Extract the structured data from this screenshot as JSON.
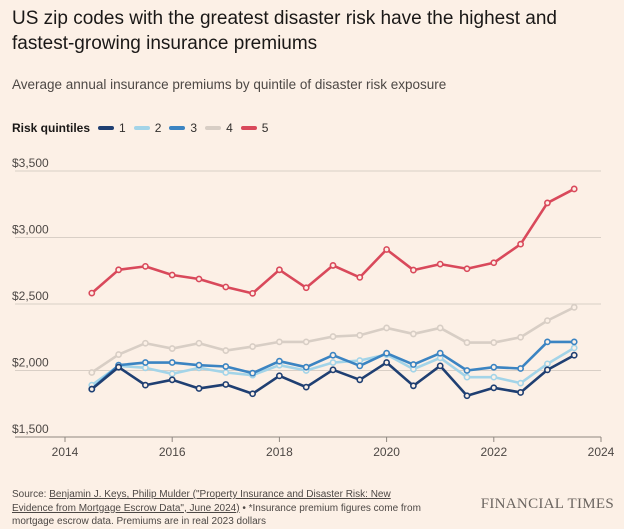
{
  "chart_data": {
    "type": "line",
    "title": "US zip codes with the greatest disaster risk have the highest and fastest-growing insurance premiums",
    "subtitle": "Average annual insurance premiums by quintile of disaster risk exposure",
    "legend_title": "Risk quintiles",
    "legend_placement": "top-left",
    "xlim": [
      2014,
      2024
    ],
    "ylim": [
      1500,
      3500
    ],
    "x_ticks": [
      "2014",
      "2016",
      "2018",
      "2020",
      "2022",
      "2024"
    ],
    "y_ticks": [
      "$1,500",
      "$2,000",
      "$2,500",
      "$3,000",
      "$3,500"
    ],
    "grid": "horizontal",
    "x": [
      2014.5,
      2015,
      2015.5,
      2016,
      2016.5,
      2017,
      2017.5,
      2018,
      2018.5,
      2019,
      2019.5,
      2020,
      2020.5,
      2021,
      2021.5,
      2022,
      2022.5,
      2023,
      2023.5
    ],
    "series": [
      {
        "name": "1",
        "color": "#1f3f72",
        "values": [
          1860,
          2025,
          1890,
          1930,
          1865,
          1895,
          1825,
          1960,
          1875,
          2005,
          1930,
          2060,
          1885,
          2035,
          1810,
          1870,
          1835,
          2005,
          2115
        ]
      },
      {
        "name": "2",
        "color": "#a3d4e8",
        "values": [
          1890,
          2035,
          2020,
          1975,
          2020,
          1985,
          1965,
          2040,
          2000,
          2060,
          2075,
          2120,
          2010,
          2095,
          1950,
          1950,
          1905,
          2050,
          2170
        ]
      },
      {
        "name": "3",
        "color": "#3b84c2",
        "values": [
          1860,
          2040,
          2060,
          2060,
          2040,
          2030,
          1980,
          2070,
          2025,
          2115,
          2035,
          2130,
          2045,
          2130,
          2000,
          2025,
          2015,
          2215,
          2215
        ]
      },
      {
        "name": "4",
        "color": "#d8cec5",
        "values": [
          1985,
          2120,
          2205,
          2165,
          2205,
          2150,
          2180,
          2215,
          2215,
          2255,
          2265,
          2320,
          2275,
          2320,
          2210,
          2210,
          2250,
          2375,
          2475
        ]
      },
      {
        "name": "5",
        "color": "#d9495b",
        "values": [
          2582,
          2757,
          2783,
          2718,
          2688,
          2628,
          2580,
          2757,
          2622,
          2790,
          2700,
          2910,
          2755,
          2800,
          2765,
          2810,
          2950,
          3260,
          3365
        ]
      }
    ]
  },
  "footer": {
    "source_prefix": "Source: ",
    "source_link": "Benjamin J. Keys, Philip Mulder (\"Property Insurance and Disaster Risk: New Evidence from Mortgage Escrow Data\", June 2024)",
    "note": " • *Insurance premium figures come from mortgage escrow data. Premiums are in real 2023 dollars"
  },
  "logo": "FINANCIAL TIMES",
  "colors": {
    "background": "#fcf0e6",
    "grid": "#d9cfc6"
  }
}
